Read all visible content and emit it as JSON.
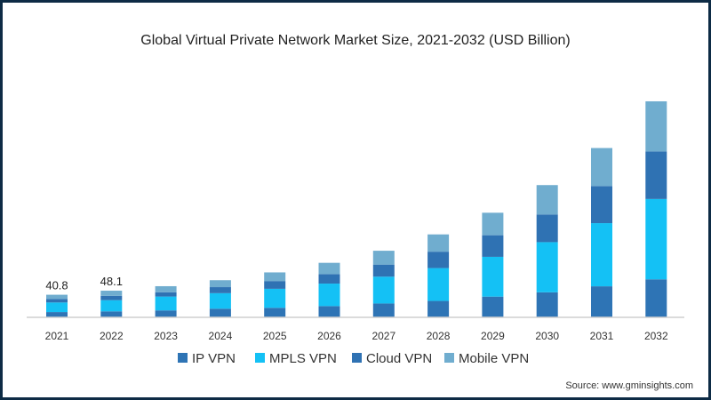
{
  "chart_data": {
    "type": "bar",
    "stacked": true,
    "title": "Global Virtual Private Network Market Size, 2021-2032 (USD Billion)",
    "xlabel": "",
    "ylabel": "",
    "ylim": [
      0,
      430
    ],
    "grid": false,
    "legend_position": "bottom",
    "categories": [
      "2021",
      "2022",
      "2023",
      "2024",
      "2025",
      "2026",
      "2027",
      "2028",
      "2029",
      "2030",
      "2031",
      "2032"
    ],
    "series": [
      {
        "name": "IP VPN",
        "color": "#2e74b5",
        "values": [
          9.5,
          10.8,
          12.5,
          15.6,
          17.2,
          20.3,
          25,
          29.6,
          37.4,
          45.2,
          56,
          68.6
        ]
      },
      {
        "name": "MPLS VPN",
        "color": "#14c1f5",
        "values": [
          17.3,
          20.2,
          25,
          28,
          34.3,
          40.6,
          48.4,
          59.3,
          71.8,
          90.5,
          114,
          145
        ]
      },
      {
        "name": "Cloud VPN",
        "color": "#2f72b3",
        "values": [
          6.2,
          7.8,
          7.8,
          10.9,
          14,
          17.2,
          21.8,
          29.6,
          39,
          50,
          67,
          85.8
        ]
      },
      {
        "name": "Mobile VPN",
        "color": "#70adcf",
        "values": [
          7.8,
          9.3,
          10.9,
          12.5,
          15.6,
          20.3,
          25,
          31.2,
          40.6,
          53,
          68.6,
          90.5
        ]
      }
    ],
    "data_labels": [
      {
        "category": "2021",
        "text": "40.8"
      },
      {
        "category": "2022",
        "text": "48.1"
      }
    ]
  },
  "source": "Source: www.gminsights.com",
  "frame_color": "#0d2b45"
}
